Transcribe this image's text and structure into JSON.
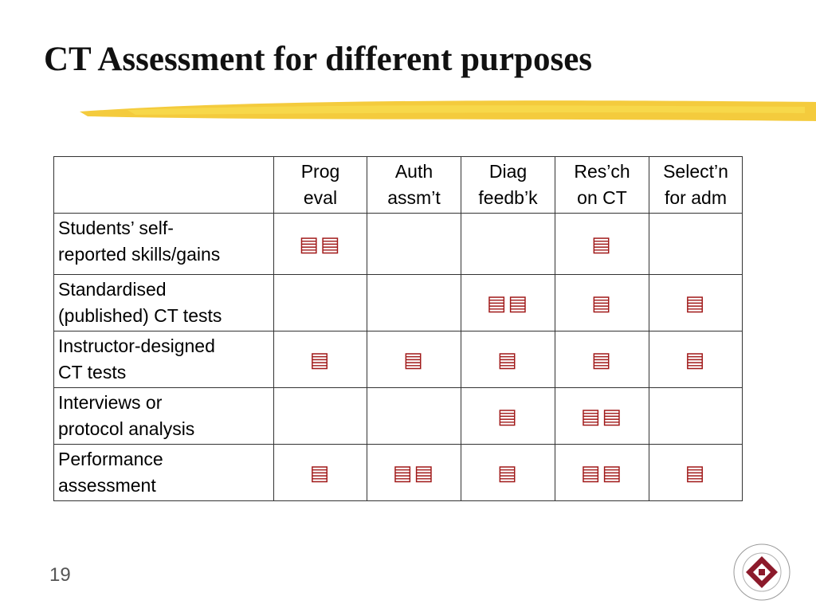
{
  "header": {
    "title": "CT Assessment for different purposes"
  },
  "table": {
    "columns": [
      "Prog\neval",
      "Auth\nassm’t",
      "Diag\nfeedb’k",
      "Res’ch\non CT",
      "Select’n\nfor adm"
    ],
    "rows": [
      {
        "label": "Students’ self-\nreported skills/gains",
        "cells": [
          "▤▤",
          null,
          null,
          "▤",
          null
        ]
      },
      {
        "label": "Standardised\n(published) CT tests",
        "cells": [
          null,
          null,
          "▤▤",
          "▤",
          "▤"
        ]
      },
      {
        "label": "Instructor-designed\nCT tests",
        "cells": [
          "▤",
          "▤",
          "▤",
          "▤",
          "▤"
        ]
      },
      {
        "label": "Interviews or\nprotocol analysis",
        "cells": [
          null,
          null,
          "▤",
          "▤▤",
          null
        ]
      },
      {
        "label": "Performance\nassessment",
        "cells": [
          "▤",
          "▤▤",
          "▤",
          "▤▤",
          "▤"
        ]
      }
    ]
  },
  "footer": {
    "page_number": "19"
  }
}
